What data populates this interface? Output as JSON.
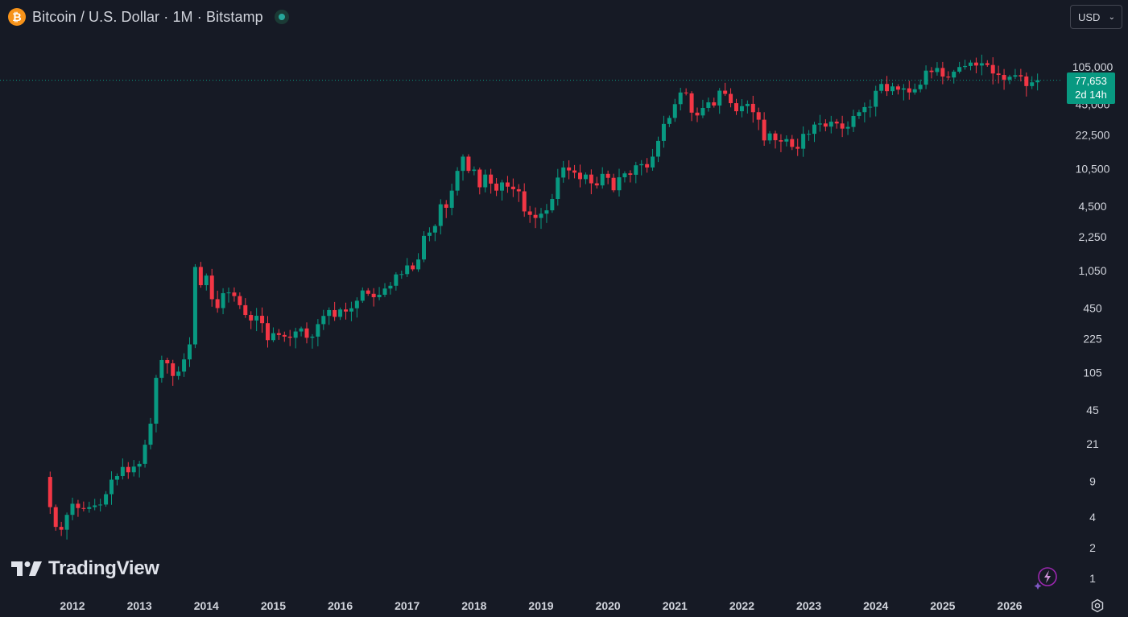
{
  "header": {
    "symbol_icon": "bitcoin-icon",
    "symbol_icon_glyph": "₿",
    "title": "Bitcoin / U.S. Dollar · 1M · Bitstamp",
    "market_status_color": "#26a69a"
  },
  "currency_selector": {
    "value": "USD"
  },
  "logo": {
    "text": "TradingView"
  },
  "price_badge": {
    "price": "77,653",
    "countdown": "2d 14h",
    "color": "#089981"
  },
  "colors": {
    "up": "#089981",
    "down": "#f23645",
    "background": "#161a25",
    "axis_text": "#d1d4dc"
  },
  "chart_data": {
    "type": "candlestick",
    "title": "Bitcoin / U.S. Dollar · 1M · Bitstamp",
    "interval": "1M",
    "exchange": "Bitstamp",
    "y_scale": "log",
    "ylim": [
      0.85,
      170000
    ],
    "xlim": [
      "2011-08",
      "2027-03"
    ],
    "grid": false,
    "last_price": 77653,
    "y_ticks": [
      1,
      2,
      4,
      9,
      21,
      45,
      105,
      225,
      450,
      1050,
      2250,
      4500,
      10500,
      22500,
      45000,
      105000
    ],
    "y_tick_labels": [
      "1",
      "2",
      "4",
      "9",
      "21",
      "45",
      "105",
      "225",
      "450",
      "1,050",
      "2,250",
      "4,500",
      "10,500",
      "22,500",
      "45,000",
      "105,000"
    ],
    "x_ticks": [
      "2012",
      "2013",
      "2014",
      "2015",
      "2016",
      "2017",
      "2018",
      "2019",
      "2020",
      "2021",
      "2022",
      "2023",
      "2024",
      "2025",
      "2026"
    ],
    "start_month": "2011-09",
    "closes": [
      5.0,
      3.2,
      3.0,
      4.2,
      5.4,
      4.9,
      4.8,
      5.0,
      5.2,
      5.3,
      6.7,
      9.3,
      10.1,
      12.4,
      11.0,
      12.5,
      13.3,
      20.5,
      33.0,
      93.0,
      139.0,
      129.0,
      97.0,
      107.0,
      141.0,
      198.0,
      1140.0,
      755.0,
      938.0,
      550.0,
      450.0,
      630.0,
      640.0,
      590.0,
      480.0,
      385.0,
      340.0,
      378.0,
      320.0,
      218.0,
      255.0,
      245.0,
      236.0,
      230.0,
      265.0,
      284.0,
      230.0,
      236.0,
      313.0,
      377.0,
      430.0,
      369.0,
      436.0,
      416.0,
      448.0,
      531.0,
      670.0,
      621.0,
      575.0,
      608.0,
      700.0,
      745.0,
      963.0,
      970.0,
      1180.0,
      1080.0,
      1350.0,
      2300.0,
      2480.0,
      2880.0,
      4700.0,
      4340.0,
      6400.0,
      10000.0,
      13800.0,
      10000.0,
      10300.0,
      6900.0,
      9200.0,
      7500.0,
      6400.0,
      7700.0,
      7000.0,
      6600.0,
      6300.0,
      4000.0,
      3700.0,
      3450.0,
      3800.0,
      4100.0,
      5300.0,
      8600.0,
      10800.0,
      10100.0,
      9600.0,
      8300.0,
      9200.0,
      7550.0,
      7200.0,
      9350.0,
      8550.0,
      6450.0,
      8650.0,
      9450.0,
      9150.0,
      11350.0,
      11650.0,
      10800.0,
      13800.0,
      19700.0,
      28900.0,
      33100.0,
      45200.0,
      58800.0,
      57700.0,
      37300.0,
      35000.0,
      41500.0,
      47100.0,
      43800.0,
      61300.0,
      57000.0,
      46200.0,
      38500.0,
      43200.0,
      45500.0,
      37700.0,
      31800.0,
      19900.0,
      23300.0,
      20000.0,
      19400.0,
      20500.0,
      17200.0,
      16500.0,
      23100.0,
      23100.0,
      28500.0,
      29200.0,
      27200.0,
      30400.0,
      29200.0,
      26000.0,
      27000.0,
      34600.0,
      37700.0,
      42300.0,
      42600.0,
      61100.0,
      71300.0,
      60600.0,
      67500.0,
      62700.0,
      64600.0,
      58900.0,
      63300.0,
      70200.0,
      96400.0,
      93400.0,
      102400.0,
      84300.0,
      82500.0,
      94200.0,
      104600.0,
      107100.0,
      115700.0,
      108200.0,
      114000.0,
      109500.0,
      90400.0,
      87500.0,
      78600.0,
      84000.0,
      87000.0,
      84500.0,
      68000.0,
      74000.0,
      77653.0
    ],
    "opens_note_omitted": true
  }
}
